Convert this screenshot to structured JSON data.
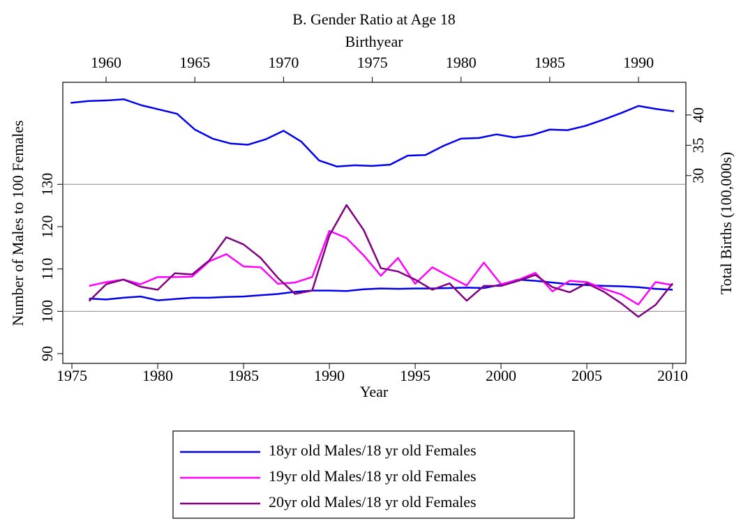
{
  "chart_data": {
    "type": "line",
    "title": "B. Gender Ratio at Age 18",
    "x_label": "Year",
    "x2_label": "Birthyear",
    "y_label": "Number of Males to 100 Females",
    "y2_label": "Total Births (100,000s)",
    "x": [
      1976,
      1977,
      1978,
      1979,
      1980,
      1981,
      1982,
      1983,
      1984,
      1985,
      1986,
      1987,
      1988,
      1989,
      1990,
      1991,
      1992,
      1993,
      1994,
      1995,
      1996,
      1997,
      1998,
      1999,
      2000,
      2001,
      2002,
      2003,
      2004,
      2005,
      2006,
      2007,
      2008,
      2009,
      2010
    ],
    "xlim": [
      1974.47,
      2010.77
    ],
    "xticks": [
      1975,
      1980,
      1985,
      1990,
      1995,
      2000,
      2005,
      2010
    ],
    "x2lim": [
      1957.56,
      1992.67
    ],
    "x2ticks": [
      1960,
      1965,
      1970,
      1975,
      1980,
      1985,
      1990
    ],
    "ylim": [
      87.7,
      154.1
    ],
    "yticks": [
      90,
      100,
      110,
      120,
      130
    ],
    "y2lim": [
      -1.0,
      45.4
    ],
    "y2ticks": [
      30,
      35,
      40
    ],
    "hlines": [
      100,
      130
    ],
    "series": [
      {
        "name": "18yr old Males/18 yr old Females",
        "color": "#0000ee",
        "values": [
          103,
          102.8,
          103.2,
          103.5,
          102.6,
          102.9,
          103.2,
          103.2,
          103.4,
          103.5,
          103.8,
          104.1,
          104.6,
          104.9,
          104.9,
          104.8,
          105.2,
          105.4,
          105.3,
          105.4,
          105.4,
          105.5,
          105.6,
          105.5,
          106.3,
          107.5,
          107.2,
          106.8,
          106.4,
          106.2,
          106.0,
          105.9,
          105.7,
          105.3,
          105.1
        ]
      },
      {
        "name": "19yr old Males/18 yr old Females",
        "color": "#ff00ff",
        "values": [
          106,
          106.9,
          107.5,
          106.4,
          108.1,
          108.1,
          108.2,
          111.8,
          113.5,
          110.6,
          110.4,
          106.5,
          106.8,
          108.1,
          119.0,
          117.3,
          113.2,
          108.4,
          112.6,
          106.5,
          110.4,
          108.2,
          106.1,
          111.5,
          106.4,
          107.4,
          109.1,
          104.7,
          107.2,
          106.9,
          105.3,
          104.0,
          101.6,
          106.9,
          106.2
        ]
      },
      {
        "name": "20yr old Males/18 yr old Females",
        "color": "#800080",
        "values": [
          102.4,
          106.4,
          107.5,
          105.8,
          105.1,
          109.0,
          108.7,
          112.0,
          117.5,
          115.8,
          112.6,
          107.9,
          104.1,
          104.9,
          117.9,
          125.1,
          119.2,
          110.2,
          109.4,
          107.5,
          105.1,
          106.6,
          102.5,
          106.0,
          106.0,
          107.2,
          108.6,
          105.7,
          104.5,
          106.6,
          104.6,
          101.9,
          98.7,
          101.5,
          106.6
        ]
      },
      {
        "color": "#0000ee",
        "axis": "y2",
        "x_axis": "x2",
        "x": [
          1958,
          1959,
          1960,
          1961,
          1962,
          1963,
          1964,
          1965,
          1966,
          1967,
          1968,
          1969,
          1970,
          1971,
          1972,
          1973,
          1974,
          1975,
          1976,
          1977,
          1978,
          1979,
          1980,
          1981,
          1982,
          1983,
          1984,
          1985,
          1986,
          1987,
          1988,
          1989,
          1990,
          1991,
          1992
        ],
        "values": [
          42.0,
          42.3,
          42.4,
          42.6,
          41.6,
          40.9,
          40.2,
          37.6,
          36.1,
          35.3,
          35.1,
          36.0,
          37.4,
          35.6,
          32.5,
          31.5,
          31.7,
          31.6,
          31.8,
          33.3,
          33.4,
          34.9,
          36.1,
          36.2,
          36.8,
          36.3,
          36.7,
          37.6,
          37.5,
          38.2,
          39.2,
          40.3,
          41.5,
          41.0,
          40.6
        ]
      }
    ]
  }
}
